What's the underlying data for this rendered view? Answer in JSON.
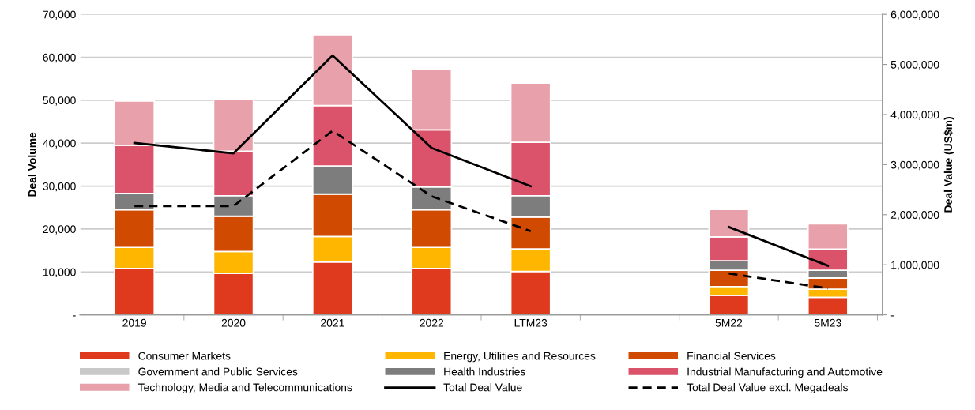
{
  "chart_data": {
    "type": "bar",
    "stacked": true,
    "xlabel": null,
    "ylabel": "Deal Volume",
    "y2label": "Deal Value (US$m)",
    "categories": [
      "2019",
      "2020",
      "2021",
      "2022",
      "LTM23",
      null,
      "5M22",
      "5M23"
    ],
    "ylim": [
      0,
      70000
    ],
    "yticks": [
      {
        "value": 0,
        "label": "-"
      },
      {
        "value": 10000,
        "label": "10,000"
      },
      {
        "value": 20000,
        "label": "20,000"
      },
      {
        "value": 30000,
        "label": "30,000"
      },
      {
        "value": 40000,
        "label": "40,000"
      },
      {
        "value": 50000,
        "label": "50,000"
      },
      {
        "value": 60000,
        "label": "60,000"
      },
      {
        "value": 70000,
        "label": "70,000"
      }
    ],
    "y2lim": [
      0,
      6000000
    ],
    "y2ticks": [
      {
        "value": 0,
        "label": "-"
      },
      {
        "value": 1000000,
        "label": "1,000,000"
      },
      {
        "value": 2000000,
        "label": "2,000,000"
      },
      {
        "value": 3000000,
        "label": "3,000,000"
      },
      {
        "value": 4000000,
        "label": "4,000,000"
      },
      {
        "value": 5000000,
        "label": "5,000,000"
      },
      {
        "value": 6000000,
        "label": "6,000,000"
      }
    ],
    "grid": "y",
    "legend": "bottom",
    "series": [
      {
        "name": "Consumer Markets",
        "color": "#e03a1e",
        "values": [
          10800,
          9650,
          12300,
          10800,
          10100,
          null,
          4550,
          4100
        ]
      },
      {
        "name": "Energy, Utilities and Resources",
        "color": "#ffb600",
        "values": [
          4900,
          5100,
          5950,
          4900,
          5250,
          null,
          2050,
          1900
        ]
      },
      {
        "name": "Financial Services",
        "color": "#d04a02",
        "values": [
          8800,
          8250,
          9900,
          8800,
          7450,
          null,
          3800,
          2600
        ]
      },
      {
        "name": "Government and Public Services",
        "color": "#c8c8c8",
        "values": [
          null,
          null,
          null,
          null,
          null,
          null,
          null,
          null
        ]
      },
      {
        "name": "Health Industries",
        "color": "#7d7d7d",
        "values": [
          3800,
          4750,
          6550,
          5300,
          4950,
          null,
          2200,
          1800
        ]
      },
      {
        "name": "Industrial Manufacturing and Automotive",
        "color": "#db536a",
        "values": [
          11200,
          10400,
          14050,
          13300,
          12450,
          null,
          5550,
          4900
        ]
      },
      {
        "name": "Technology, Media and Telecommunications",
        "color": "#e8a0aa",
        "values": [
          10300,
          12050,
          16500,
          14200,
          13800,
          null,
          6400,
          5900
        ]
      },
      {
        "name": "Total Deal Value",
        "type": "line",
        "axis": "y2",
        "line_style": "solid",
        "color": "#000000",
        "values": [
          3432000,
          3225000,
          5180000,
          3332000,
          2568000,
          null,
          1754000,
          982000
        ]
      },
      {
        "name": "Total Deal Value excl. Megadeals",
        "type": "line",
        "axis": "y2",
        "line_style": "dashed",
        "color": "#000000",
        "values": [
          2173000,
          2173000,
          3676000,
          2367000,
          1672000,
          null,
          826000,
          529000
        ]
      }
    ]
  }
}
